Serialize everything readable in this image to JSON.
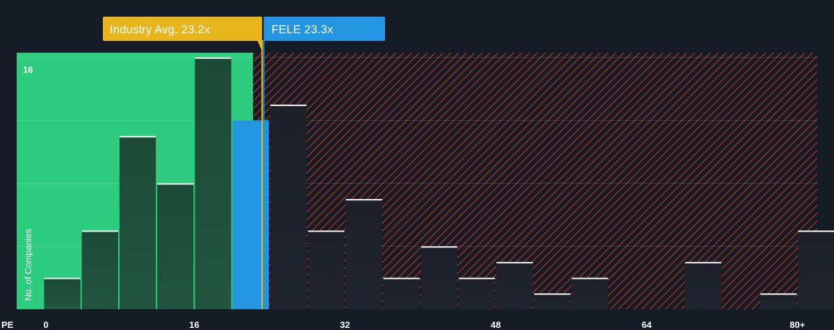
{
  "chart_data": {
    "type": "bar",
    "x_unit_label": "PE",
    "x_ticks": [
      "0",
      "16",
      "32",
      "48",
      "64",
      "80+"
    ],
    "y_tick": "16",
    "ylabel": "No. of Companies",
    "ylim": [
      0,
      16.3
    ],
    "bin_width": 4,
    "bins": [
      {
        "x": 0,
        "count": 2
      },
      {
        "x": 4,
        "count": 5
      },
      {
        "x": 8,
        "count": 11
      },
      {
        "x": 12,
        "count": 8
      },
      {
        "x": 16,
        "count": 16
      },
      {
        "x": 20,
        "count": 12
      },
      {
        "x": 24,
        "count": 13
      },
      {
        "x": 28,
        "count": 5
      },
      {
        "x": 32,
        "count": 7
      },
      {
        "x": 36,
        "count": 2
      },
      {
        "x": 40,
        "count": 4
      },
      {
        "x": 44,
        "count": 2
      },
      {
        "x": 48,
        "count": 3
      },
      {
        "x": 52,
        "count": 1
      },
      {
        "x": 56,
        "count": 2
      },
      {
        "x": 60,
        "count": 0
      },
      {
        "x": 64,
        "count": 0
      },
      {
        "x": 68,
        "count": 3
      },
      {
        "x": 72,
        "count": 0
      },
      {
        "x": 76,
        "count": 1
      },
      {
        "x": 80,
        "count": 5
      }
    ],
    "highlight_bin_x": 20,
    "industry_avg": {
      "label": "Industry Avg. 23.2x",
      "value": 23.2
    },
    "company": {
      "label": "FELE 23.3x",
      "value": 23.3
    },
    "colors": {
      "background": "#151b24",
      "undervalued_zone": "#2ecc7f",
      "overvalued_hatch": "#c0392b",
      "bar_green": "#1e4a38",
      "bar_dark": "#1c2029",
      "highlight": "#2394e0",
      "industry_label": "#e9b51d",
      "company_label": "#2394e0"
    }
  }
}
